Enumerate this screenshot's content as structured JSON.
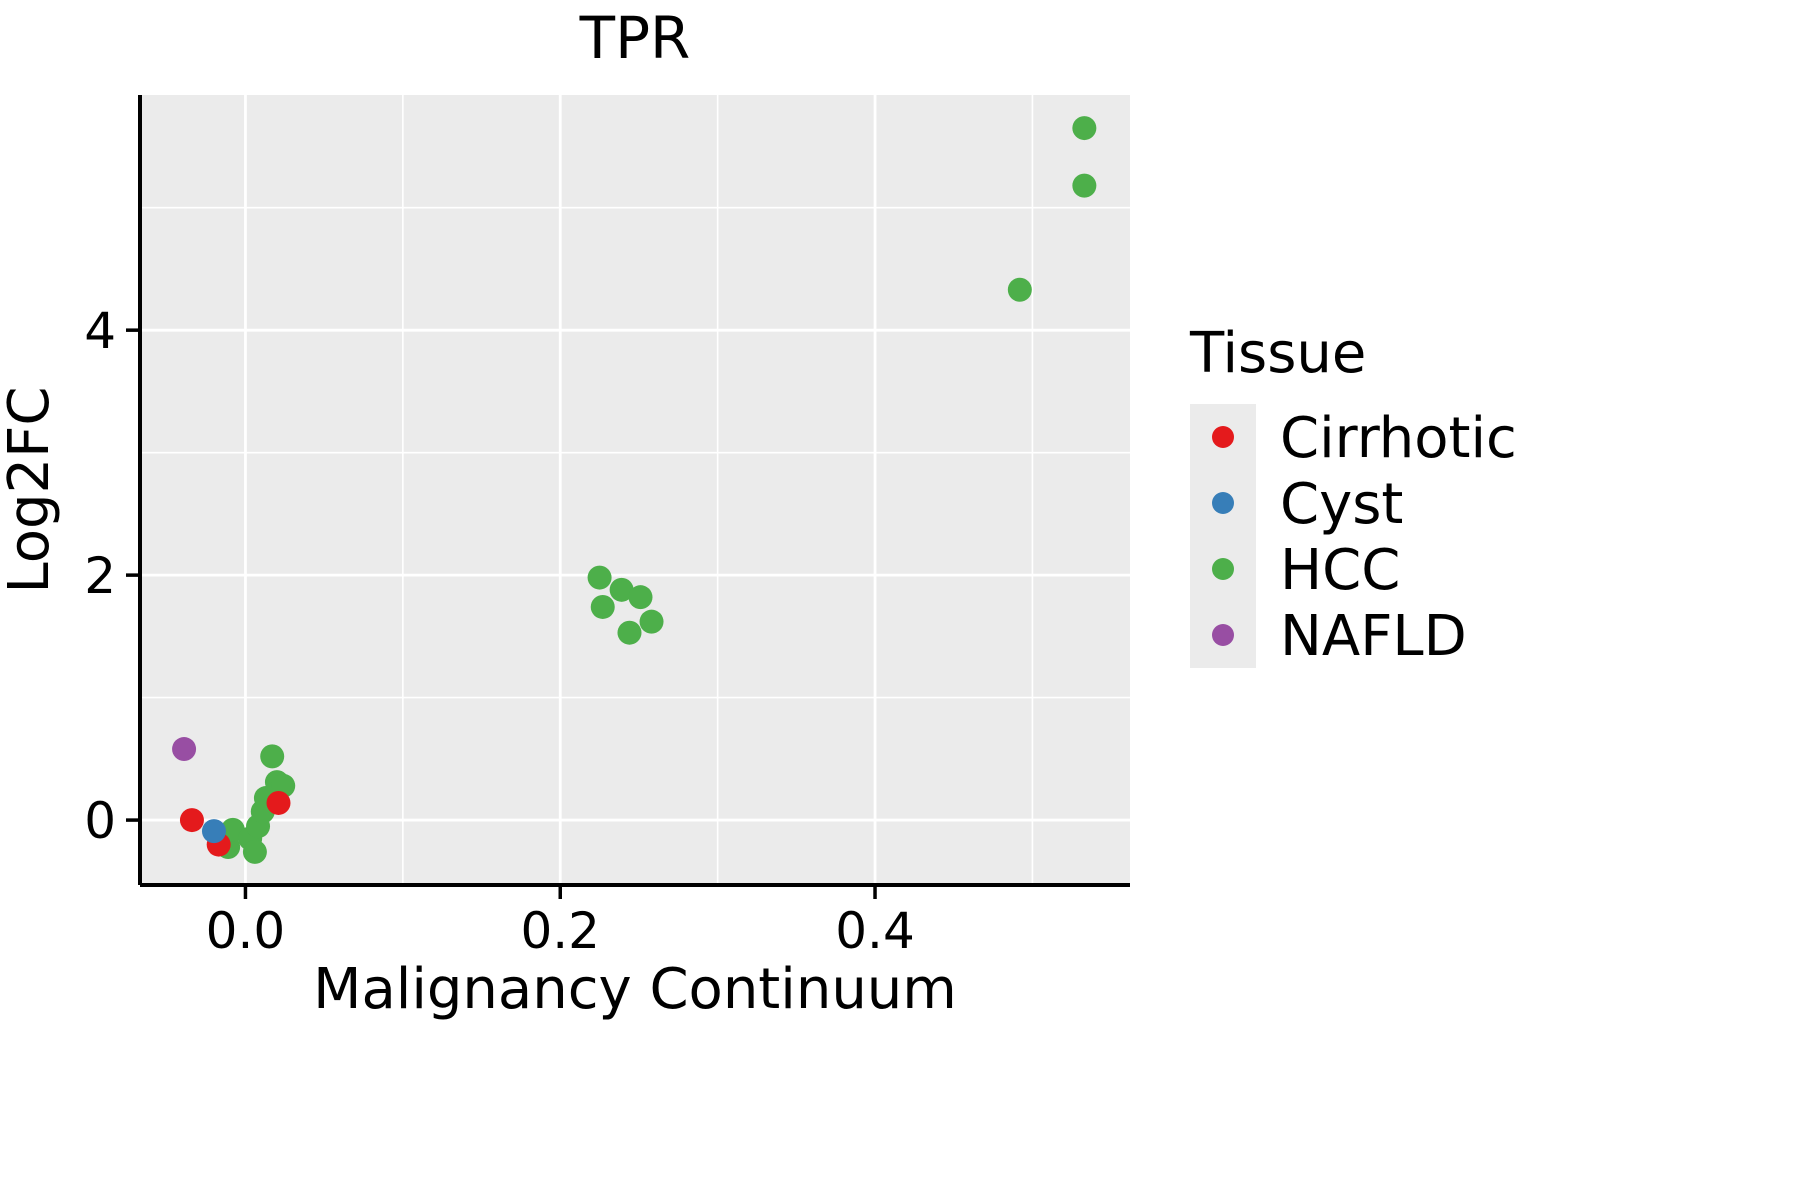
{
  "colors": {
    "panel_background": "#EBEBEB",
    "grid_major": "#FFFFFF",
    "grid_minor": "#FFFFFF",
    "axis_line": "#000000",
    "text": "#000000",
    "legend_key_background": "#EBEBEB"
  },
  "chart_data": {
    "type": "scatter",
    "title": "TPR",
    "xlabel": "Malignancy Continuum",
    "ylabel": "Log2FC",
    "legend_title": "Tissue",
    "legend_position": "right",
    "grid": true,
    "xlim": [
      -0.067,
      0.562
    ],
    "ylim": [
      -0.53,
      5.92
    ],
    "x_ticks": [
      0.0,
      0.2,
      0.4
    ],
    "x_tick_labels": [
      "0.0",
      "0.2",
      "0.4"
    ],
    "x_minor_ticks": [
      0.1,
      0.3,
      0.5
    ],
    "y_ticks": [
      0,
      2,
      4
    ],
    "y_tick_labels": [
      "0",
      "2",
      "4"
    ],
    "y_minor_ticks": [
      1,
      3,
      5
    ],
    "series": [
      {
        "name": "Cirrhotic",
        "color": "#E41A1C",
        "points": [
          [
            -0.034,
            0.0
          ],
          [
            -0.017,
            -0.2
          ],
          [
            0.021,
            0.14
          ]
        ]
      },
      {
        "name": "Cyst",
        "color": "#377EB8",
        "points": [
          [
            -0.02,
            -0.09
          ]
        ]
      },
      {
        "name": "HCC",
        "color": "#4DAF4A",
        "points": [
          [
            -0.011,
            -0.22
          ],
          [
            -0.008,
            -0.08
          ],
          [
            0.003,
            -0.15
          ],
          [
            0.006,
            -0.26
          ],
          [
            0.008,
            -0.05
          ],
          [
            0.011,
            0.07
          ],
          [
            0.013,
            0.18
          ],
          [
            0.017,
            0.52
          ],
          [
            0.02,
            0.31
          ],
          [
            0.024,
            0.28
          ],
          [
            0.225,
            1.98
          ],
          [
            0.239,
            1.88
          ],
          [
            0.227,
            1.74
          ],
          [
            0.251,
            1.82
          ],
          [
            0.244,
            1.53
          ],
          [
            0.258,
            1.62
          ],
          [
            0.492,
            4.33
          ],
          [
            0.533,
            5.18
          ],
          [
            0.533,
            5.65
          ]
        ]
      },
      {
        "name": "NAFLD",
        "color": "#984EA3",
        "points": [
          [
            -0.039,
            0.58
          ]
        ]
      }
    ],
    "draw_order": [
      "HCC",
      "Cirrhotic",
      "Cyst",
      "NAFLD"
    ]
  }
}
